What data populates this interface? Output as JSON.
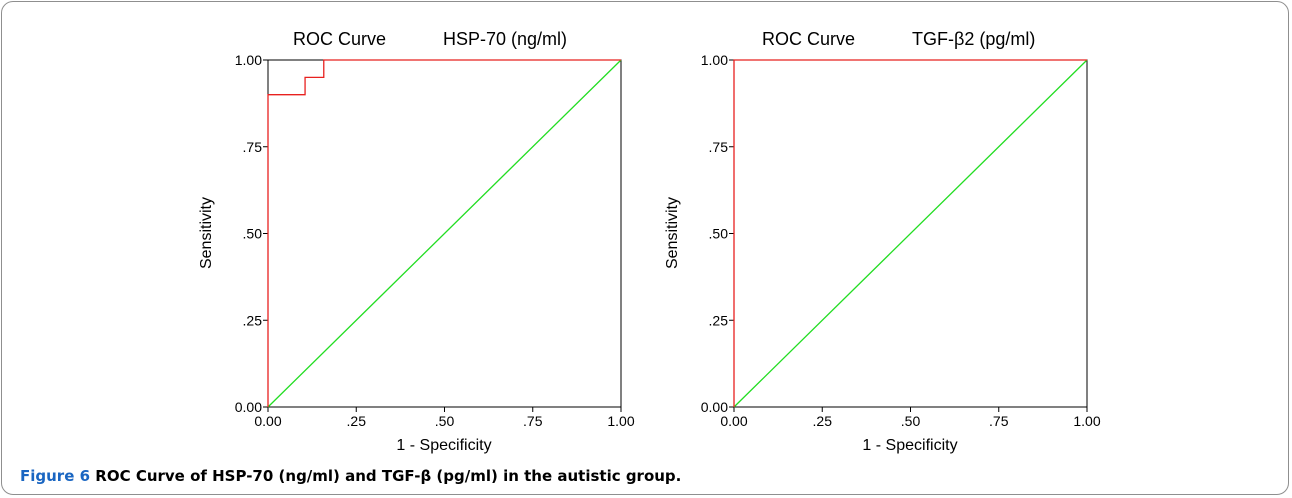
{
  "chart_data": [
    {
      "type": "line",
      "title": "ROC Curve",
      "subtitle": "HSP-70 (ng/ml)",
      "xlabel": "1 - Specificity",
      "ylabel": "Sensitivity",
      "xlim": [
        0,
        1
      ],
      "ylim": [
        0,
        1
      ],
      "x_ticks": [
        "0.00",
        ".25",
        ".50",
        ".75",
        "1.00"
      ],
      "y_ticks": [
        "0.00",
        ".25",
        ".50",
        ".75",
        "1.00"
      ],
      "grid": false,
      "series": [
        {
          "color": "#e8211f",
          "x": [
            0.0,
            0.0,
            0.105,
            0.105,
            0.158,
            0.158,
            1.0
          ],
          "y": [
            0.0,
            0.9,
            0.9,
            0.95,
            0.95,
            1.0,
            1.0
          ]
        },
        {
          "color": "#22dd22",
          "x": [
            0.0,
            1.0
          ],
          "y": [
            0.0,
            1.0
          ]
        }
      ]
    },
    {
      "type": "line",
      "title": "ROC Curve",
      "subtitle": "TGF-β2 (pg/ml)",
      "xlabel": "1 - Specificity",
      "ylabel": "Sensitivity",
      "xlim": [
        0,
        1
      ],
      "ylim": [
        0,
        1
      ],
      "x_ticks": [
        "0.00",
        ".25",
        ".50",
        ".75",
        "1.00"
      ],
      "y_ticks": [
        "0.00",
        ".25",
        ".50",
        ".75",
        "1.00"
      ],
      "grid": false,
      "series": [
        {
          "color": "#e8211f",
          "x": [
            0.0,
            0.0,
            1.0
          ],
          "y": [
            0.0,
            1.0,
            1.0
          ]
        },
        {
          "color": "#22dd22",
          "x": [
            0.0,
            1.0
          ],
          "y": [
            0.0,
            1.0
          ]
        }
      ]
    }
  ],
  "caption": {
    "label": "Figure 6",
    "text": "ROC Curve of HSP-70 (ng/ml) and TGF-β (pg/ml) in the autistic group."
  }
}
